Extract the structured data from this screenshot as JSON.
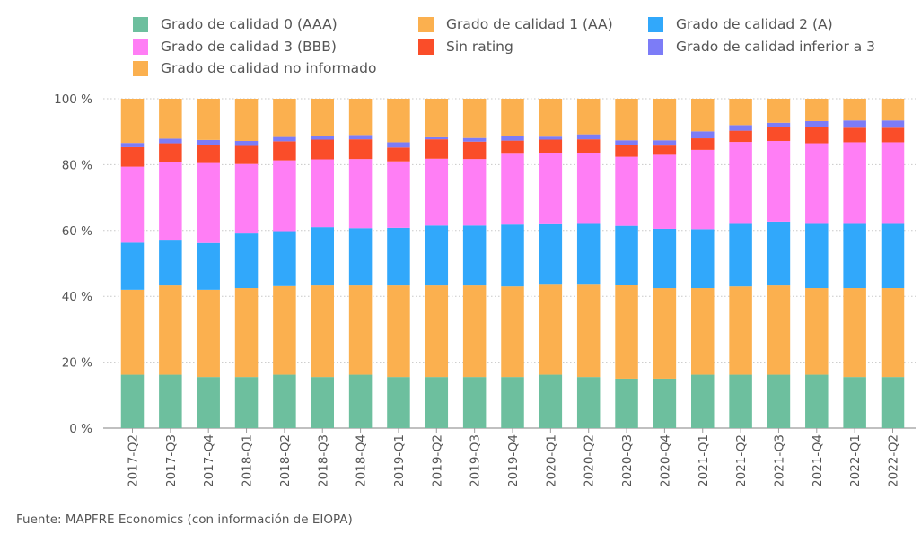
{
  "chart_data": {
    "type": "bar",
    "stacked": true,
    "categories": [
      "2017-Q2",
      "2017-Q3",
      "2017-Q4",
      "2018-Q1",
      "2018-Q2",
      "2018-Q3",
      "2018-Q4",
      "2019-Q1",
      "2019-Q2",
      "2019-Q3",
      "2019-Q4",
      "2020-Q1",
      "2020-Q2",
      "2020-Q3",
      "2020-Q4",
      "2021-Q1",
      "2021-Q2",
      "2021-Q3",
      "2021-Q4",
      "2022-Q1",
      "2022-Q2"
    ],
    "series": [
      {
        "name": "Grado de calidad 0 (AAA)",
        "color": "#6dbf9e",
        "values": [
          16.2,
          16.2,
          15.5,
          15.5,
          16.2,
          15.5,
          16.2,
          15.5,
          15.5,
          15.5,
          15.5,
          16.2,
          15.5,
          15.0,
          15.0,
          16.2,
          16.2,
          16.2,
          16.2,
          15.5,
          15.5
        ]
      },
      {
        "name": "Grado de calidad 1 (AA)",
        "color": "#fbb04f",
        "values": [
          25.8,
          27.1,
          26.5,
          27.0,
          26.9,
          27.8,
          27.1,
          27.8,
          27.8,
          27.8,
          27.5,
          27.6,
          28.3,
          28.5,
          27.5,
          26.3,
          26.8,
          27.1,
          26.3,
          27.0,
          27.0
        ]
      },
      {
        "name": "Grado de calidad 2 (A)",
        "color": "#31a8fb",
        "values": [
          14.3,
          13.9,
          14.2,
          16.6,
          16.7,
          17.7,
          17.4,
          17.5,
          18.2,
          18.2,
          18.8,
          18.1,
          18.2,
          17.9,
          18.0,
          17.9,
          19.0,
          19.4,
          19.5,
          19.5,
          19.5
        ]
      },
      {
        "name": "Grado de calidad 3 (BBB)",
        "color": "#ff7ef5",
        "values": [
          23.1,
          23.6,
          24.3,
          21.1,
          21.5,
          20.6,
          21.0,
          20.2,
          20.3,
          20.2,
          21.5,
          21.5,
          21.5,
          21.0,
          22.5,
          24.1,
          24.9,
          24.5,
          24.5,
          24.8,
          24.8
        ]
      },
      {
        "name": "Sin rating",
        "color": "#fa4d29",
        "values": [
          5.9,
          5.7,
          5.5,
          5.5,
          5.8,
          6.0,
          6.0,
          4.2,
          5.9,
          5.3,
          4.0,
          4.2,
          4.2,
          3.5,
          2.8,
          3.5,
          3.4,
          4.1,
          4.8,
          4.4,
          4.4
        ]
      },
      {
        "name": "Grado de calidad inferior a 3",
        "color": "#7c7cf7",
        "values": [
          1.3,
          1.4,
          1.5,
          1.5,
          1.3,
          1.2,
          1.3,
          1.6,
          0.6,
          1.1,
          1.5,
          0.9,
          1.5,
          1.5,
          1.6,
          2.1,
          1.7,
          1.4,
          1.9,
          2.2,
          2.2
        ]
      },
      {
        "name": "Grado de calidad no informado",
        "color": "#fbb04f",
        "values": [
          13.4,
          12.1,
          12.5,
          12.8,
          11.6,
          11.2,
          11.0,
          13.2,
          11.7,
          11.9,
          11.2,
          11.5,
          10.8,
          12.6,
          12.6,
          9.9,
          8.0,
          7.3,
          6.8,
          6.6,
          6.6
        ]
      }
    ],
    "yticks": [
      "0 %",
      "20 %",
      "40 %",
      "60 %",
      "80 %",
      "100 %"
    ],
    "ylim": [
      0,
      100
    ],
    "grid": true,
    "legend_position": "top"
  },
  "source_note": "Fuente: MAPFRE Economics (con información de EIOPA)"
}
